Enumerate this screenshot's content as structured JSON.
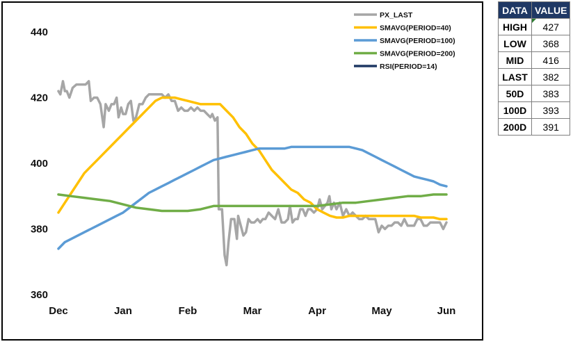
{
  "table": {
    "headers": [
      "DATA",
      "VALUE"
    ],
    "rows": [
      {
        "label": "HIGH",
        "value": "427"
      },
      {
        "label": "LOW",
        "value": "368"
      },
      {
        "label": "MID",
        "value": "416"
      },
      {
        "label": "LAST",
        "value": "382"
      },
      {
        "label": "50D",
        "value": "383"
      },
      {
        "label": "100D",
        "value": "393"
      },
      {
        "label": "200D",
        "value": "391"
      }
    ]
  },
  "chart_data": {
    "type": "line",
    "title": "",
    "xlabel": "",
    "ylabel": "",
    "ylim": [
      360,
      440
    ],
    "yticks": [
      360,
      380,
      400,
      420,
      440
    ],
    "xlim": [
      0,
      6
    ],
    "xticks": [
      {
        "label": "Dec",
        "x": 0
      },
      {
        "label": "Jan",
        "x": 1
      },
      {
        "label": "Feb",
        "x": 2
      },
      {
        "label": "Mar",
        "x": 3
      },
      {
        "label": "Apr",
        "x": 4
      },
      {
        "label": "May",
        "x": 5
      },
      {
        "label": "Jun",
        "x": 6
      }
    ],
    "grid": false,
    "legend_position": "top-right",
    "series": [
      {
        "name": "PX_LAST",
        "color": "#a6a6a6",
        "points": [
          [
            0.0,
            422
          ],
          [
            0.03,
            421
          ],
          [
            0.07,
            425
          ],
          [
            0.1,
            422
          ],
          [
            0.13,
            422
          ],
          [
            0.17,
            420
          ],
          [
            0.22,
            423
          ],
          [
            0.28,
            424
          ],
          [
            0.35,
            424
          ],
          [
            0.42,
            424
          ],
          [
            0.47,
            425
          ],
          [
            0.5,
            419
          ],
          [
            0.55,
            420
          ],
          [
            0.6,
            420
          ],
          [
            0.65,
            418
          ],
          [
            0.7,
            411
          ],
          [
            0.73,
            418
          ],
          [
            0.78,
            416
          ],
          [
            0.82,
            418
          ],
          [
            0.86,
            418
          ],
          [
            0.9,
            420
          ],
          [
            0.93,
            414
          ],
          [
            0.97,
            417
          ],
          [
            1.0,
            415
          ],
          [
            1.04,
            415
          ],
          [
            1.08,
            418
          ],
          [
            1.12,
            419
          ],
          [
            1.16,
            413
          ],
          [
            1.2,
            414
          ],
          [
            1.25,
            418
          ],
          [
            1.3,
            418
          ],
          [
            1.35,
            420
          ],
          [
            1.4,
            421
          ],
          [
            1.45,
            421
          ],
          [
            1.5,
            421
          ],
          [
            1.55,
            421
          ],
          [
            1.6,
            421
          ],
          [
            1.65,
            420
          ],
          [
            1.7,
            421
          ],
          [
            1.75,
            419
          ],
          [
            1.8,
            419
          ],
          [
            1.85,
            416
          ],
          [
            1.9,
            417
          ],
          [
            1.95,
            416
          ],
          [
            2.0,
            416
          ],
          [
            2.05,
            417
          ],
          [
            2.1,
            416
          ],
          [
            2.15,
            417
          ],
          [
            2.2,
            416
          ],
          [
            2.25,
            416
          ],
          [
            2.3,
            415
          ],
          [
            2.35,
            414
          ],
          [
            2.38,
            415
          ],
          [
            2.42,
            413
          ],
          [
            2.46,
            414
          ],
          [
            2.48,
            386
          ],
          [
            2.5,
            386
          ],
          [
            2.53,
            386
          ],
          [
            2.57,
            372
          ],
          [
            2.6,
            369
          ],
          [
            2.63,
            376
          ],
          [
            2.67,
            383
          ],
          [
            2.72,
            383
          ],
          [
            2.76,
            377
          ],
          [
            2.78,
            384
          ],
          [
            2.82,
            381
          ],
          [
            2.86,
            378
          ],
          [
            2.9,
            379
          ],
          [
            2.94,
            383
          ],
          [
            2.98,
            382
          ],
          [
            3.03,
            382
          ],
          [
            3.08,
            383
          ],
          [
            3.12,
            382
          ],
          [
            3.16,
            383
          ],
          [
            3.2,
            383
          ],
          [
            3.25,
            385
          ],
          [
            3.3,
            384
          ],
          [
            3.35,
            383
          ],
          [
            3.4,
            386
          ],
          [
            3.45,
            382
          ],
          [
            3.5,
            382
          ],
          [
            3.55,
            383
          ],
          [
            3.58,
            387
          ],
          [
            3.62,
            382
          ],
          [
            3.66,
            383
          ],
          [
            3.7,
            383
          ],
          [
            3.74,
            386
          ],
          [
            3.78,
            386
          ],
          [
            3.82,
            384
          ],
          [
            3.86,
            386
          ],
          [
            3.9,
            386
          ],
          [
            3.95,
            385
          ],
          [
            4.0,
            386
          ],
          [
            4.04,
            389
          ],
          [
            4.08,
            386
          ],
          [
            4.12,
            387
          ],
          [
            4.16,
            388
          ],
          [
            4.19,
            390
          ],
          [
            4.22,
            386
          ],
          [
            4.26,
            388
          ],
          [
            4.3,
            386
          ],
          [
            4.35,
            388
          ],
          [
            4.4,
            384
          ],
          [
            4.45,
            386
          ],
          [
            4.5,
            384
          ],
          [
            4.55,
            385
          ],
          [
            4.6,
            384
          ],
          [
            4.65,
            383
          ],
          [
            4.7,
            383
          ],
          [
            4.75,
            384
          ],
          [
            4.8,
            383
          ],
          [
            4.85,
            383
          ],
          [
            4.9,
            383
          ],
          [
            4.95,
            379
          ],
          [
            5.0,
            381
          ],
          [
            5.05,
            380
          ],
          [
            5.1,
            381
          ],
          [
            5.15,
            381
          ],
          [
            5.2,
            382
          ],
          [
            5.25,
            382
          ],
          [
            5.3,
            381
          ],
          [
            5.35,
            383
          ],
          [
            5.4,
            381
          ],
          [
            5.45,
            381
          ],
          [
            5.5,
            381
          ],
          [
            5.55,
            383
          ],
          [
            5.6,
            383
          ],
          [
            5.65,
            381
          ],
          [
            5.7,
            381
          ],
          [
            5.75,
            382
          ],
          [
            5.8,
            382
          ],
          [
            5.85,
            382
          ],
          [
            5.9,
            382
          ],
          [
            5.95,
            380
          ],
          [
            6.0,
            382
          ]
        ]
      },
      {
        "name": "SMAVG(PERIOD=40)",
        "color": "#ffc000",
        "points": [
          [
            0.0,
            385
          ],
          [
            0.1,
            388
          ],
          [
            0.2,
            391
          ],
          [
            0.3,
            394
          ],
          [
            0.4,
            397
          ],
          [
            0.5,
            399
          ],
          [
            0.6,
            401
          ],
          [
            0.7,
            403
          ],
          [
            0.8,
            405
          ],
          [
            0.9,
            407
          ],
          [
            1.0,
            409
          ],
          [
            1.1,
            411
          ],
          [
            1.2,
            413
          ],
          [
            1.3,
            415
          ],
          [
            1.4,
            417
          ],
          [
            1.5,
            419
          ],
          [
            1.6,
            420
          ],
          [
            1.7,
            420
          ],
          [
            1.8,
            420
          ],
          [
            1.9,
            419.5
          ],
          [
            2.0,
            419
          ],
          [
            2.1,
            418.5
          ],
          [
            2.2,
            418
          ],
          [
            2.3,
            418
          ],
          [
            2.4,
            418
          ],
          [
            2.5,
            418
          ],
          [
            2.6,
            416
          ],
          [
            2.7,
            414
          ],
          [
            2.8,
            411
          ],
          [
            2.9,
            409
          ],
          [
            3.0,
            406
          ],
          [
            3.1,
            404
          ],
          [
            3.2,
            401
          ],
          [
            3.3,
            398
          ],
          [
            3.4,
            396
          ],
          [
            3.5,
            394
          ],
          [
            3.6,
            392
          ],
          [
            3.7,
            391
          ],
          [
            3.8,
            389
          ],
          [
            3.9,
            388
          ],
          [
            4.0,
            386
          ],
          [
            4.1,
            385
          ],
          [
            4.2,
            384
          ],
          [
            4.3,
            383.5
          ],
          [
            4.4,
            383.5
          ],
          [
            4.5,
            384
          ],
          [
            4.6,
            384
          ],
          [
            4.7,
            384
          ],
          [
            4.8,
            384
          ],
          [
            4.9,
            384
          ],
          [
            5.0,
            384
          ],
          [
            5.1,
            384
          ],
          [
            5.2,
            384
          ],
          [
            5.3,
            384
          ],
          [
            5.4,
            384
          ],
          [
            5.5,
            384
          ],
          [
            5.6,
            383.5
          ],
          [
            5.7,
            383.5
          ],
          [
            5.8,
            383.5
          ],
          [
            5.9,
            383
          ],
          [
            6.0,
            383
          ]
        ]
      },
      {
        "name": "SMAVG(PERIOD=100)",
        "color": "#5b9bd5",
        "points": [
          [
            0.0,
            374
          ],
          [
            0.1,
            376
          ],
          [
            0.2,
            377
          ],
          [
            0.3,
            378
          ],
          [
            0.4,
            379
          ],
          [
            0.5,
            380
          ],
          [
            0.6,
            381
          ],
          [
            0.7,
            382
          ],
          [
            0.8,
            383
          ],
          [
            0.9,
            384
          ],
          [
            1.0,
            385
          ],
          [
            1.1,
            386.5
          ],
          [
            1.2,
            388
          ],
          [
            1.3,
            389.5
          ],
          [
            1.4,
            391
          ],
          [
            1.5,
            392
          ],
          [
            1.6,
            393
          ],
          [
            1.7,
            394
          ],
          [
            1.8,
            395
          ],
          [
            1.9,
            396
          ],
          [
            2.0,
            397
          ],
          [
            2.1,
            398
          ],
          [
            2.2,
            399
          ],
          [
            2.3,
            400
          ],
          [
            2.4,
            401
          ],
          [
            2.5,
            401.5
          ],
          [
            2.6,
            402
          ],
          [
            2.7,
            402.5
          ],
          [
            2.8,
            403
          ],
          [
            2.9,
            403.5
          ],
          [
            3.0,
            404
          ],
          [
            3.1,
            404.5
          ],
          [
            3.2,
            404.5
          ],
          [
            3.3,
            404.5
          ],
          [
            3.4,
            404.5
          ],
          [
            3.5,
            404.5
          ],
          [
            3.6,
            405
          ],
          [
            3.7,
            405
          ],
          [
            3.8,
            405
          ],
          [
            3.9,
            405
          ],
          [
            4.0,
            405
          ],
          [
            4.1,
            405
          ],
          [
            4.2,
            405
          ],
          [
            4.3,
            405
          ],
          [
            4.4,
            405
          ],
          [
            4.5,
            405
          ],
          [
            4.6,
            404.5
          ],
          [
            4.7,
            404
          ],
          [
            4.8,
            403
          ],
          [
            4.9,
            402
          ],
          [
            5.0,
            401
          ],
          [
            5.1,
            400
          ],
          [
            5.2,
            399
          ],
          [
            5.3,
            398
          ],
          [
            5.4,
            397
          ],
          [
            5.5,
            396
          ],
          [
            5.6,
            395.5
          ],
          [
            5.7,
            395
          ],
          [
            5.8,
            394.5
          ],
          [
            5.9,
            393.5
          ],
          [
            6.0,
            393
          ]
        ]
      },
      {
        "name": "SMAVG(PERIOD=200)",
        "color": "#70ad47",
        "points": [
          [
            0.0,
            390.5
          ],
          [
            0.2,
            390
          ],
          [
            0.4,
            389.5
          ],
          [
            0.6,
            389
          ],
          [
            0.8,
            388.5
          ],
          [
            1.0,
            387.5
          ],
          [
            1.2,
            386.5
          ],
          [
            1.4,
            386
          ],
          [
            1.6,
            385.5
          ],
          [
            1.8,
            385.5
          ],
          [
            2.0,
            385.5
          ],
          [
            2.2,
            386
          ],
          [
            2.4,
            387
          ],
          [
            2.6,
            387
          ],
          [
            2.8,
            387
          ],
          [
            3.0,
            387
          ],
          [
            3.2,
            387
          ],
          [
            3.4,
            387
          ],
          [
            3.6,
            387
          ],
          [
            3.8,
            387
          ],
          [
            4.0,
            387
          ],
          [
            4.2,
            387.5
          ],
          [
            4.4,
            388
          ],
          [
            4.6,
            388
          ],
          [
            4.8,
            388.5
          ],
          [
            5.0,
            389
          ],
          [
            5.2,
            389.5
          ],
          [
            5.4,
            390
          ],
          [
            5.6,
            390
          ],
          [
            5.8,
            390.5
          ],
          [
            6.0,
            390.5
          ]
        ]
      },
      {
        "name": "RSI(PERIOD=14)",
        "color": "#1f3864",
        "points": []
      }
    ]
  }
}
